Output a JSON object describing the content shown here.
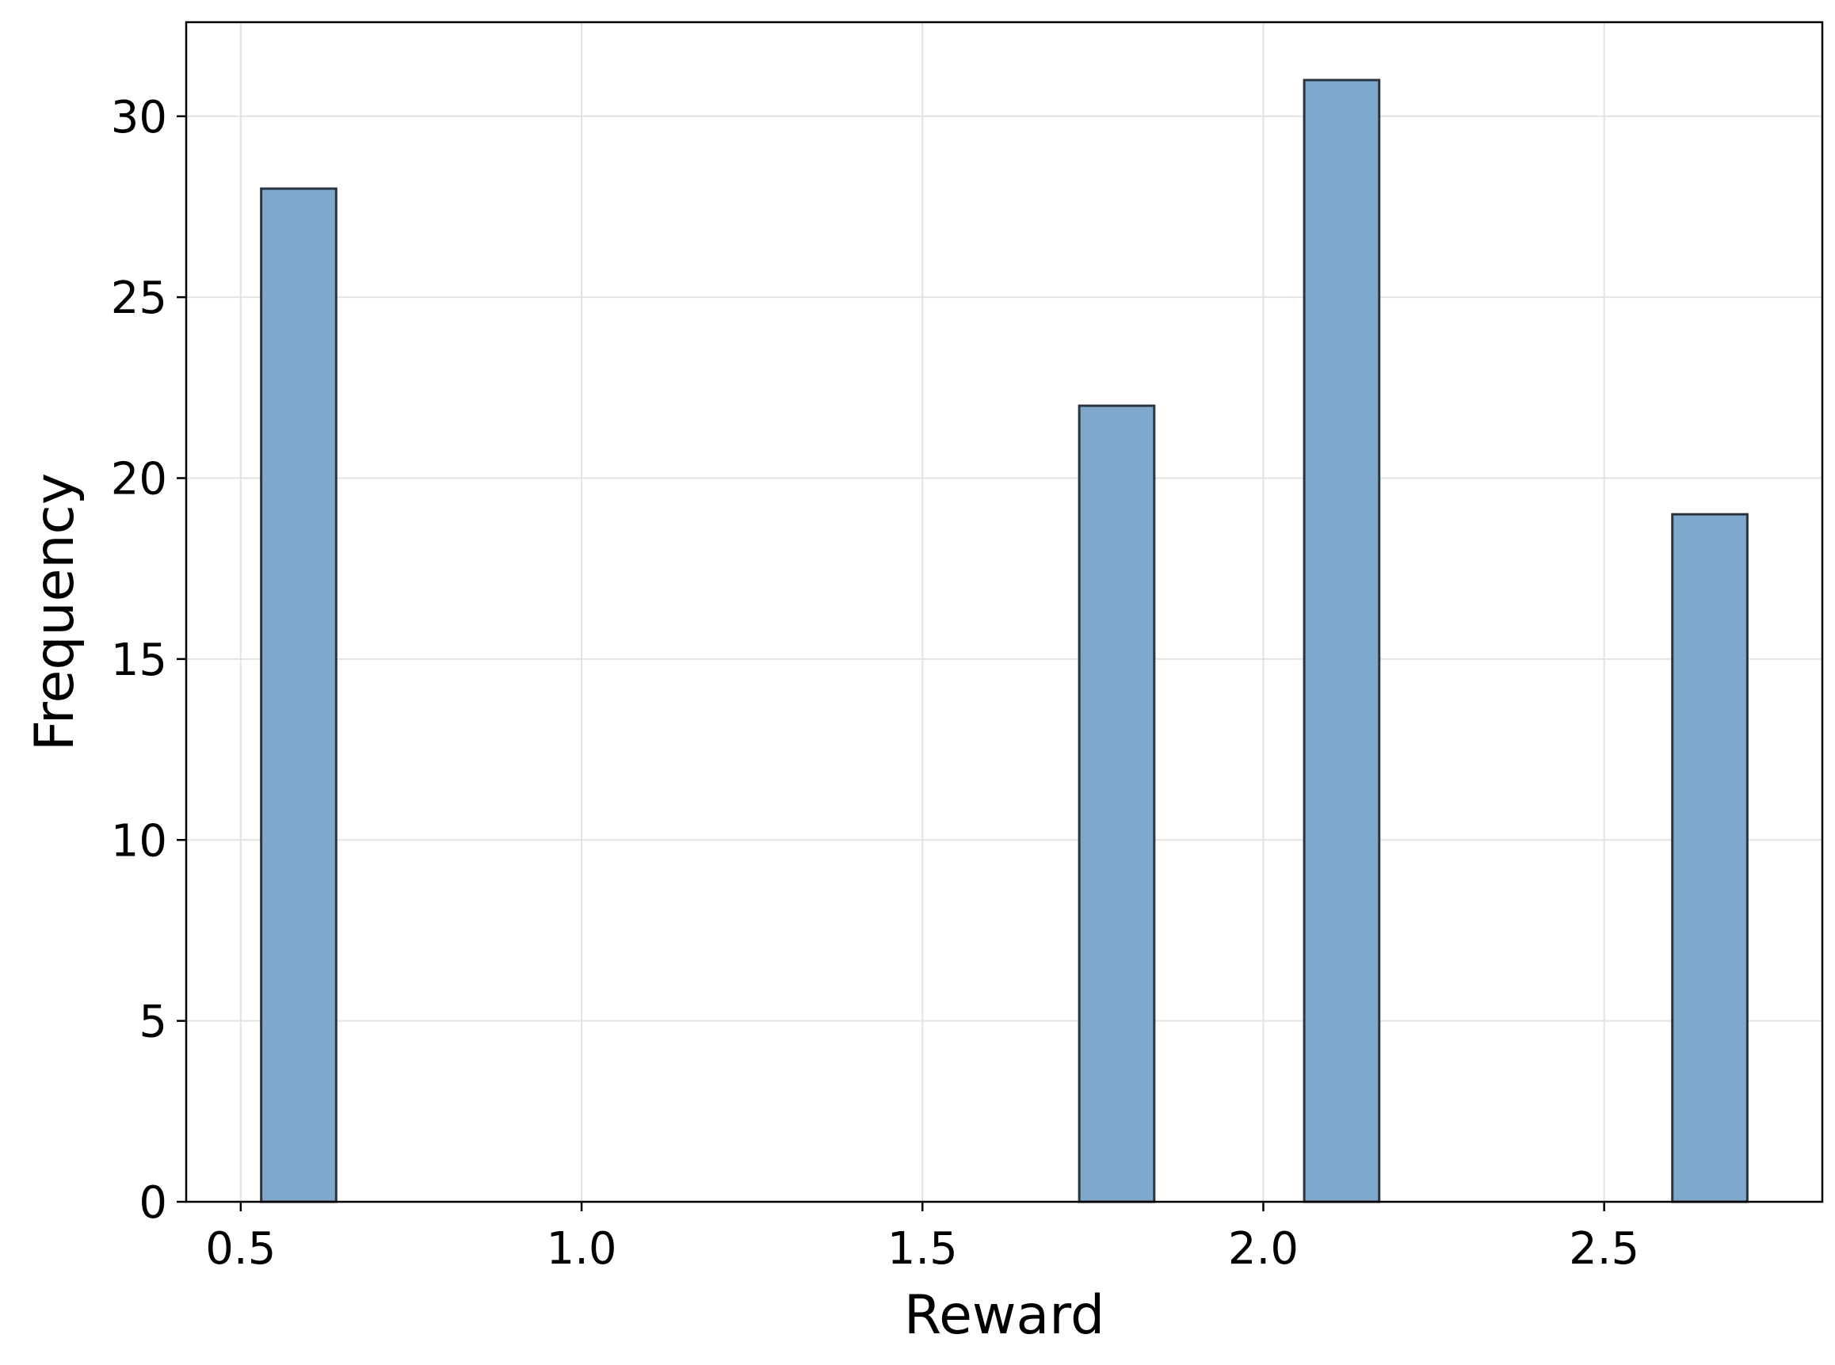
{
  "chart_data": {
    "type": "bar",
    "title": "",
    "xlabel": "Reward",
    "ylabel": "Frequency",
    "xlim": [
      0.42,
      2.82
    ],
    "ylim": [
      0,
      32.6
    ],
    "grid": true,
    "bar_color": "#7fa8cc",
    "edge_color": "#2b3540",
    "x_ticks": [
      0.5,
      1.0,
      1.5,
      2.0,
      2.5
    ],
    "x_tick_labels": [
      "0.5",
      "1.0",
      "1.5",
      "2.0",
      "2.5"
    ],
    "y_ticks": [
      0,
      5,
      10,
      15,
      20,
      25,
      30
    ],
    "y_tick_labels": [
      "0",
      "5",
      "10",
      "15",
      "20",
      "25",
      "30"
    ],
    "bins": [
      {
        "x0": 0.53,
        "x1": 0.64,
        "value": 28
      },
      {
        "x0": 1.73,
        "x1": 1.84,
        "value": 22
      },
      {
        "x0": 2.06,
        "x1": 2.17,
        "value": 31
      },
      {
        "x0": 2.6,
        "x1": 2.71,
        "value": 19
      }
    ]
  }
}
